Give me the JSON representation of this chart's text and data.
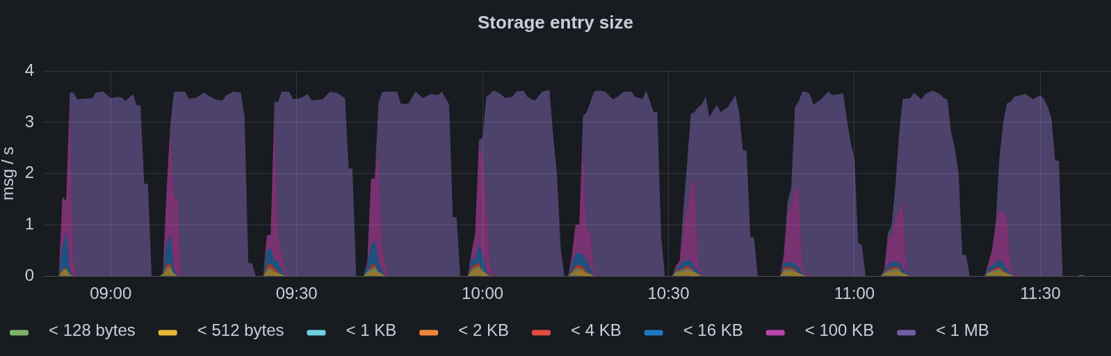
{
  "chart_data": {
    "type": "area",
    "title": "Storage entry size",
    "ylabel": "msg / s",
    "stacked": true,
    "x": [
      8.82,
      8.86,
      8.87,
      8.88,
      8.89,
      8.9,
      8.91,
      8.93,
      8.95,
      8.96,
      8.98,
      9,
      9.02,
      9.03,
      9.04,
      9.06,
      9.07,
      9.08,
      9.09,
      9.1,
      9.11,
      9.13,
      9.14,
      9.15,
      9.16,
      9.17,
      9.18,
      9.19,
      9.2,
      9.21,
      9.23,
      9.25,
      9.28,
      9.3,
      9.31,
      9.33,
      9.35,
      9.36,
      9.37,
      9.38,
      9.39,
      9.41,
      9.42,
      9.43,
      9.44,
      9.45,
      9.46,
      9.47,
      9.48,
      9.49,
      9.51,
      9.53,
      9.54,
      9.57,
      9.59,
      9.61,
      9.63,
      9.64,
      9.65,
      9.66,
      9.68,
      9.69,
      9.7,
      9.71,
      9.72,
      9.73,
      9.74,
      9.75,
      9.77,
      9.78,
      9.8,
      9.82,
      9.84,
      9.86,
      9.88,
      9.89,
      9.91,
      9.92,
      9.93,
      9.94,
      9.96,
      9.97,
      9.98,
      9.99,
      10,
      10.01,
      10.02,
      10.03,
      10.05,
      10.06,
      10.08,
      10.09,
      10.11,
      10.12,
      10.14,
      10.16,
      10.18,
      10.19,
      10.2,
      10.21,
      10.22,
      10.23,
      10.24,
      10.25,
      10.26,
      10.27,
      10.28,
      10.29,
      10.3,
      10.31,
      10.33,
      10.35,
      10.36,
      10.38,
      10.4,
      10.41,
      10.43,
      10.44,
      10.46,
      10.47,
      10.48,
      10.49,
      10.51,
      10.52,
      10.53,
      10.54,
      10.55,
      10.56,
      10.57,
      10.58,
      10.59,
      10.6,
      10.61,
      10.63,
      10.64,
      10.66,
      10.68,
      10.69,
      10.7,
      10.71,
      10.72,
      10.73,
      10.74,
      10.8,
      10.81,
      10.82,
      10.83,
      10.84,
      10.85,
      10.86,
      10.87,
      10.88,
      10.89,
      10.91,
      10.93,
      10.94,
      10.96,
      10.97,
      10.98,
      10.99,
      11,
      11.01,
      11.02,
      11.03,
      11.07,
      11.08,
      11.09,
      11.1,
      11.11,
      11.12,
      11.13,
      11.14,
      11.15,
      11.16,
      11.18,
      11.19,
      11.21,
      11.23,
      11.24,
      11.25,
      11.26,
      11.27,
      11.28,
      11.29,
      11.3,
      11.31,
      11.35,
      11.36,
      11.37,
      11.38,
      11.39,
      11.4,
      11.41,
      11.42,
      11.43,
      11.45,
      11.46,
      11.48,
      11.5,
      11.51,
      11.52,
      11.53,
      11.54,
      11.55,
      11.56,
      11.6,
      11.61,
      11.62,
      11.69
    ],
    "xlim": [
      8.82,
      11.69
    ],
    "xticks": [
      {
        "value": 9,
        "label": "09:00"
      },
      {
        "value": 9.5,
        "label": "09:30"
      },
      {
        "value": 10,
        "label": "10:00"
      },
      {
        "value": 10.5,
        "label": "10:30"
      },
      {
        "value": 11,
        "label": "11:00"
      },
      {
        "value": 11.5,
        "label": "11:30"
      }
    ],
    "ylim": [
      0,
      4
    ],
    "yticks": [
      0,
      1,
      2,
      3,
      4
    ],
    "grid": true,
    "legend": "bottom left",
    "marker": "none",
    "series": [
      {
        "name": "< 128 bytes",
        "color": "#7eb26d",
        "values": [
          0,
          0,
          0.01,
          0.02,
          0,
          0,
          0,
          0,
          0,
          0,
          0,
          0,
          0,
          0,
          0,
          0,
          0,
          0,
          0,
          0,
          0,
          0,
          0.02,
          0.01,
          0.01,
          0,
          0,
          0,
          0,
          0,
          0,
          0,
          0,
          0,
          0,
          0,
          0,
          0,
          0,
          0,
          0,
          0,
          0.01,
          0.01,
          0,
          0,
          0,
          0,
          0,
          0,
          0,
          0,
          0,
          0,
          0,
          0,
          0,
          0,
          0,
          0,
          0,
          0.01,
          0.01,
          0.01,
          0,
          0,
          0,
          0,
          0,
          0,
          0,
          0,
          0,
          0,
          0,
          0,
          0,
          0,
          0,
          0,
          0,
          0.01,
          0.01,
          0.01,
          0,
          0,
          0,
          0,
          0,
          0,
          0,
          0,
          0,
          0,
          0,
          0,
          0,
          0,
          0,
          0,
          0,
          0,
          0.01,
          0.02,
          0.01,
          0,
          0,
          0,
          0,
          0,
          0,
          0,
          0,
          0,
          0,
          0,
          0,
          0,
          0,
          0,
          0,
          0,
          0,
          0.01,
          0.01,
          0.01,
          0.01,
          0,
          0,
          0,
          0,
          0,
          0,
          0,
          0,
          0,
          0,
          0,
          0,
          0,
          0,
          0,
          0,
          0,
          0.01,
          0.01,
          0,
          0,
          0,
          0,
          0,
          0,
          0,
          0,
          0,
          0,
          0,
          0,
          0,
          0,
          0,
          0,
          0,
          0,
          0,
          0.01,
          0.01,
          0.01,
          0.01,
          0.01,
          0,
          0,
          0,
          0,
          0,
          0,
          0,
          0,
          0,
          0,
          0,
          0,
          0,
          0,
          0,
          0,
          0,
          0.01,
          0.01,
          0.01,
          0.01,
          0,
          0,
          0,
          0,
          0,
          0,
          0,
          0,
          0,
          0,
          0,
          0,
          0,
          0,
          0,
          0,
          0,
          0
        ]
      },
      {
        "name": "< 512 bytes",
        "color": "#eab839",
        "values": [
          0,
          0,
          0.08,
          0.12,
          0.03,
          0,
          0,
          0,
          0,
          0,
          0,
          0,
          0,
          0,
          0,
          0,
          0,
          0,
          0,
          0,
          0,
          0,
          0.02,
          0.1,
          0.14,
          0.05,
          0,
          0,
          0,
          0,
          0,
          0,
          0,
          0,
          0,
          0,
          0,
          0,
          0,
          0,
          0,
          0,
          0.08,
          0.1,
          0.08,
          0.06,
          0.03,
          0,
          0,
          0,
          0,
          0,
          0,
          0,
          0,
          0,
          0,
          0,
          0,
          0,
          0,
          0.05,
          0.08,
          0.12,
          0.08,
          0.04,
          0,
          0,
          0,
          0,
          0,
          0,
          0,
          0,
          0,
          0,
          0,
          0,
          0,
          0,
          0,
          0.08,
          0.12,
          0.14,
          0.1,
          0.05,
          0,
          0,
          0,
          0,
          0,
          0,
          0,
          0,
          0,
          0,
          0,
          0,
          0,
          0,
          0,
          0,
          0.04,
          0.08,
          0.1,
          0.1,
          0.06,
          0.04,
          0,
          0,
          0,
          0,
          0,
          0,
          0,
          0,
          0,
          0,
          0,
          0,
          0,
          0,
          0,
          0.05,
          0.06,
          0.08,
          0.1,
          0.1,
          0.08,
          0.04,
          0,
          0,
          0,
          0,
          0,
          0,
          0,
          0,
          0,
          0,
          0,
          0,
          0,
          0,
          0.08,
          0.09,
          0.1,
          0.08,
          0.06,
          0.03,
          0,
          0,
          0,
          0,
          0,
          0,
          0,
          0,
          0,
          0,
          0,
          0,
          0,
          0,
          0,
          0.03,
          0.06,
          0.08,
          0.1,
          0.08,
          0.06,
          0.03,
          0,
          0,
          0,
          0,
          0,
          0,
          0,
          0,
          0,
          0,
          0,
          0,
          0,
          0,
          0,
          0.04,
          0.06,
          0.08,
          0.1,
          0.08,
          0.06,
          0.03,
          0,
          0,
          0,
          0,
          0,
          0,
          0,
          0,
          0,
          0,
          0,
          0,
          0,
          0,
          0
        ]
      },
      {
        "name": "< 1 KB",
        "color": "#6ed0e0",
        "values": [
          0,
          0,
          0.01,
          0.01,
          0,
          0,
          0,
          0,
          0,
          0,
          0,
          0,
          0,
          0,
          0,
          0,
          0,
          0,
          0,
          0,
          0,
          0,
          0,
          0.02,
          0.02,
          0,
          0,
          0,
          0,
          0,
          0,
          0,
          0,
          0,
          0,
          0,
          0,
          0,
          0,
          0,
          0,
          0,
          0.02,
          0.02,
          0,
          0,
          0,
          0,
          0,
          0,
          0,
          0,
          0,
          0,
          0,
          0,
          0,
          0,
          0,
          0,
          0,
          0.03,
          0.03,
          0.03,
          0,
          0,
          0,
          0,
          0,
          0,
          0,
          0,
          0,
          0,
          0,
          0,
          0,
          0,
          0,
          0,
          0,
          0.02,
          0.02,
          0.02,
          0,
          0,
          0,
          0,
          0,
          0,
          0,
          0,
          0,
          0,
          0,
          0,
          0,
          0,
          0,
          0,
          0,
          0,
          0.01,
          0.02,
          0.02,
          0,
          0,
          0,
          0,
          0,
          0,
          0,
          0,
          0,
          0,
          0,
          0,
          0,
          0,
          0,
          0,
          0,
          0,
          0.02,
          0.02,
          0.02,
          0.02,
          0.02,
          0,
          0,
          0,
          0,
          0,
          0,
          0,
          0,
          0,
          0,
          0,
          0,
          0,
          0,
          0,
          0,
          0.02,
          0.02,
          0.02,
          0,
          0,
          0,
          0,
          0,
          0,
          0,
          0,
          0,
          0,
          0,
          0,
          0,
          0,
          0,
          0,
          0,
          0,
          0.01,
          0.02,
          0.02,
          0.02,
          0.02,
          0,
          0,
          0,
          0,
          0,
          0,
          0,
          0,
          0,
          0,
          0,
          0,
          0,
          0,
          0,
          0,
          0,
          0.02,
          0.02,
          0.02,
          0.02,
          0,
          0,
          0,
          0,
          0,
          0,
          0,
          0,
          0,
          0,
          0,
          0,
          0,
          0,
          0,
          0,
          0,
          0
        ]
      },
      {
        "name": "< 2 KB",
        "color": "#ef843c",
        "values": [
          0,
          0,
          0.02,
          0.01,
          0,
          0,
          0,
          0,
          0,
          0,
          0,
          0,
          0,
          0,
          0,
          0,
          0,
          0,
          0,
          0,
          0,
          0,
          0,
          0.05,
          0.04,
          0,
          0,
          0,
          0,
          0,
          0,
          0,
          0,
          0,
          0,
          0,
          0,
          0,
          0,
          0,
          0,
          0,
          0.04,
          0.05,
          0.04,
          0,
          0,
          0,
          0,
          0,
          0,
          0,
          0,
          0,
          0,
          0,
          0,
          0,
          0,
          0,
          0,
          0,
          0.03,
          0.04,
          0,
          0,
          0,
          0,
          0,
          0,
          0,
          0,
          0,
          0,
          0,
          0,
          0,
          0,
          0,
          0,
          0,
          0.03,
          0.03,
          0.04,
          0,
          0,
          0,
          0,
          0,
          0,
          0,
          0,
          0,
          0,
          0,
          0,
          0,
          0,
          0,
          0,
          0,
          0,
          0.02,
          0.04,
          0.04,
          0.04,
          0,
          0,
          0,
          0,
          0,
          0,
          0,
          0,
          0,
          0,
          0,
          0,
          0,
          0,
          0,
          0,
          0,
          0.02,
          0.02,
          0.03,
          0.03,
          0.03,
          0,
          0,
          0,
          0,
          0,
          0,
          0,
          0,
          0,
          0,
          0,
          0,
          0,
          0,
          0,
          0,
          0.03,
          0.03,
          0.03,
          0.03,
          0,
          0,
          0,
          0,
          0,
          0,
          0,
          0,
          0,
          0,
          0,
          0,
          0,
          0,
          0,
          0,
          0,
          0.01,
          0.02,
          0.03,
          0.03,
          0.03,
          0,
          0,
          0,
          0,
          0,
          0,
          0,
          0,
          0,
          0,
          0,
          0,
          0,
          0,
          0,
          0,
          0,
          0.01,
          0.02,
          0.02,
          0.03,
          0.02,
          0,
          0,
          0,
          0,
          0,
          0,
          0,
          0,
          0,
          0,
          0,
          0,
          0,
          0,
          0,
          0,
          0
        ]
      },
      {
        "name": "< 4 KB",
        "color": "#e24d42",
        "values": [
          0,
          0,
          0.02,
          0.01,
          0,
          0,
          0,
          0,
          0,
          0,
          0,
          0,
          0,
          0,
          0,
          0,
          0,
          0,
          0,
          0,
          0,
          0,
          0,
          0.05,
          0.04,
          0,
          0,
          0,
          0,
          0,
          0,
          0,
          0,
          0,
          0,
          0,
          0,
          0,
          0,
          0,
          0,
          0,
          0.05,
          0.07,
          0.05,
          0.04,
          0,
          0,
          0,
          0,
          0,
          0,
          0,
          0,
          0,
          0,
          0,
          0,
          0,
          0,
          0,
          0,
          0.05,
          0.05,
          0,
          0,
          0,
          0,
          0,
          0,
          0,
          0,
          0,
          0,
          0,
          0,
          0,
          0,
          0,
          0,
          0,
          0.04,
          0.05,
          0.05,
          0,
          0,
          0,
          0,
          0,
          0,
          0,
          0,
          0,
          0,
          0,
          0,
          0,
          0,
          0,
          0,
          0,
          0,
          0.02,
          0.04,
          0.05,
          0.05,
          0.04,
          0,
          0,
          0,
          0,
          0,
          0,
          0,
          0,
          0,
          0,
          0,
          0,
          0,
          0,
          0,
          0,
          0.02,
          0.02,
          0.03,
          0.04,
          0.03,
          0,
          0,
          0,
          0,
          0,
          0,
          0,
          0,
          0,
          0,
          0,
          0,
          0,
          0,
          0,
          0,
          0.03,
          0.03,
          0.03,
          0.03,
          0,
          0,
          0,
          0,
          0,
          0,
          0,
          0,
          0,
          0,
          0,
          0,
          0,
          0,
          0,
          0,
          0,
          0.01,
          0.03,
          0.04,
          0.03,
          0.03,
          0,
          0,
          0,
          0,
          0,
          0,
          0,
          0,
          0,
          0,
          0,
          0,
          0,
          0,
          0,
          0,
          0,
          0.01,
          0.02,
          0.03,
          0.03,
          0.03,
          0,
          0,
          0,
          0,
          0,
          0,
          0,
          0,
          0,
          0,
          0,
          0,
          0,
          0,
          0,
          0,
          0
        ]
      },
      {
        "name": "< 16 KB",
        "color": "#1f78c1",
        "values": [
          0,
          0,
          0.4,
          0.7,
          0.1,
          0,
          0,
          0,
          0,
          0,
          0,
          0,
          0,
          0,
          0,
          0,
          0,
          0,
          0,
          0,
          0,
          0,
          0,
          0.4,
          0.55,
          0.1,
          0,
          0,
          0,
          0,
          0,
          0,
          0,
          0,
          0,
          0,
          0,
          0,
          0,
          0,
          0,
          0,
          0.3,
          0.3,
          0.13,
          0.18,
          0.1,
          0,
          0,
          0,
          0,
          0,
          0,
          0,
          0,
          0,
          0,
          0,
          0,
          0,
          0,
          0.1,
          0.4,
          0.45,
          0.2,
          0.05,
          0,
          0,
          0,
          0,
          0,
          0,
          0,
          0,
          0,
          0,
          0,
          0,
          0,
          0,
          0,
          0.15,
          0.1,
          0.34,
          0.3,
          0.05,
          0,
          0,
          0,
          0,
          0,
          0,
          0,
          0,
          0,
          0,
          0,
          0,
          0,
          0,
          0,
          0,
          0.1,
          0.25,
          0.22,
          0.23,
          0.2,
          0.1,
          0,
          0,
          0,
          0,
          0,
          0,
          0,
          0,
          0,
          0,
          0,
          0,
          0,
          0,
          0,
          0.04,
          0.07,
          0.13,
          0.1,
          0.12,
          0.1,
          0.06,
          0,
          0,
          0,
          0,
          0,
          0,
          0,
          0,
          0,
          0,
          0,
          0,
          0,
          0,
          0.08,
          0.08,
          0.09,
          0.11,
          0.1,
          0.04,
          0,
          0,
          0,
          0,
          0,
          0,
          0,
          0,
          0,
          0,
          0,
          0,
          0,
          0,
          0,
          0.03,
          0.08,
          0.1,
          0.08,
          0.1,
          0.08,
          0.05,
          0,
          0,
          0,
          0,
          0,
          0,
          0,
          0,
          0,
          0,
          0,
          0,
          0,
          0,
          0,
          0.06,
          0.07,
          0.1,
          0.13,
          0.12,
          0.08,
          0.03,
          0,
          0,
          0,
          0,
          0,
          0,
          0,
          0,
          0,
          0,
          0,
          0,
          0,
          0,
          0
        ]
      },
      {
        "name": "< 100 KB",
        "color": "#ba43a9",
        "values": [
          0,
          0,
          1,
          0.6,
          3.3,
          0.3,
          0,
          0,
          0,
          0,
          0,
          0,
          0,
          0,
          0,
          0,
          0,
          0,
          0,
          0,
          0,
          0,
          0,
          1,
          2.14,
          1.4,
          1.5,
          0,
          0,
          0,
          0,
          0,
          0,
          0,
          0,
          0,
          0,
          0,
          0,
          0,
          0,
          0,
          0.3,
          0.25,
          2.9,
          0.6,
          0.33,
          0.1,
          0,
          0,
          0,
          0,
          0,
          0,
          0,
          0,
          0,
          0,
          0,
          0,
          0,
          0.1,
          1.3,
          1.2,
          2.2,
          0.5,
          0.15,
          0,
          0,
          0,
          0,
          0,
          0,
          0,
          0,
          0,
          0,
          0,
          0,
          0,
          0,
          0.12,
          0.5,
          1.95,
          2,
          1.45,
          0.2,
          0,
          0,
          0,
          0,
          0,
          0,
          0,
          0,
          0,
          0,
          0,
          0,
          0,
          0,
          0,
          0.2,
          0.55,
          0.56,
          2.2,
          0.6,
          0.7,
          0.05,
          0,
          0,
          0,
          0,
          0,
          0,
          0,
          0,
          0,
          0,
          0,
          0,
          0,
          0,
          0.04,
          0.1,
          0.6,
          1,
          1.5,
          1.7,
          0.15,
          0.05,
          0,
          0,
          0,
          0,
          0,
          0,
          0,
          0,
          0,
          0,
          0,
          0,
          0,
          0.16,
          1,
          1.1,
          1.45,
          1.55,
          0.1,
          0.05,
          0,
          0,
          0,
          0,
          0,
          0,
          0,
          0,
          0,
          0,
          0,
          0,
          0,
          0,
          0.02,
          0.52,
          0.5,
          0.83,
          1,
          1.33,
          0.05,
          0.02,
          0,
          0,
          0,
          0,
          0,
          0,
          0,
          0,
          0,
          0,
          0,
          0,
          0,
          0,
          0.1,
          0.3,
          0.74,
          0.98,
          1,
          1.02,
          0.1,
          0.03,
          0,
          0,
          0,
          0,
          0,
          0,
          0,
          0,
          0,
          0,
          0,
          0,
          0,
          0
        ]
      },
      {
        "name": "< 1 MB",
        "color": "#705da0",
        "values": [
          0,
          0,
          0,
          0,
          0.15,
          3.28,
          3.45,
          3.46,
          3.47,
          3.58,
          3.6,
          3.47,
          3.5,
          3.48,
          3.42,
          3.55,
          3.33,
          3.33,
          1.8,
          1.8,
          0,
          0,
          0,
          0,
          0,
          2.05,
          2.1,
          3.6,
          3.6,
          3.46,
          3.48,
          3.58,
          3.45,
          3.42,
          3.52,
          3.6,
          3.58,
          3.1,
          0.25,
          0.25,
          0,
          0,
          0,
          0,
          0.2,
          2.52,
          3.14,
          3.5,
          3.6,
          3.45,
          3.47,
          3.55,
          3.43,
          3.45,
          3.6,
          3.57,
          3.47,
          2.1,
          2.1,
          0,
          0,
          0,
          0,
          0,
          0.9,
          3,
          3.45,
          3.6,
          3.6,
          3.36,
          3.36,
          3.6,
          3.47,
          3.55,
          3.53,
          3.6,
          3.35,
          1.15,
          1.15,
          0,
          0,
          0,
          0,
          0.1,
          0.3,
          1.95,
          3.35,
          3.62,
          3.55,
          3.47,
          3.5,
          3.6,
          3.62,
          3.5,
          3.42,
          3.6,
          3.63,
          2.72,
          2,
          0.55,
          0,
          0,
          0,
          0,
          0,
          0.5,
          2.3,
          2.56,
          3.55,
          3.62,
          3.6,
          3.45,
          3.48,
          3.6,
          3.6,
          3.5,
          3.45,
          3.62,
          3.2,
          3.2,
          0.8,
          0,
          0,
          0,
          0,
          0.4,
          0.9,
          1.36,
          1.32,
          3.05,
          3.3,
          3.5,
          3.1,
          3.34,
          3.2,
          3.3,
          3.53,
          3.2,
          2.45,
          2.45,
          0.76,
          0.76,
          0,
          0,
          0,
          0.2,
          0.33,
          1.6,
          1.7,
          3.43,
          3.55,
          3.55,
          3.34,
          3.45,
          3.6,
          3.53,
          3.55,
          3.57,
          3.04,
          2.6,
          2.29,
          0.65,
          0.6,
          0,
          0,
          0,
          0.1,
          0.2,
          0.65,
          1.5,
          1.99,
          3.33,
          3.45,
          3.58,
          3.45,
          3.55,
          3.62,
          3.55,
          3.47,
          3.45,
          2.81,
          2.5,
          2.02,
          0.41,
          0.41,
          0,
          0,
          0,
          0,
          0.05,
          1,
          1.75,
          2.21,
          3.24,
          3.47,
          3.53,
          3.56,
          3.45,
          3.53,
          3.45,
          3.3,
          3.07,
          2.25,
          2.25,
          0,
          0,
          0.03,
          0,
          0
        ]
      }
    ]
  }
}
